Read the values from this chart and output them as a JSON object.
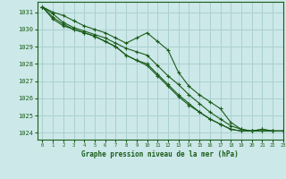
{
  "title": "Graphe pression niveau de la mer (hPa)",
  "background_color": "#cce8e8",
  "grid_color": "#aad0d0",
  "line_color": "#1a5c1a",
  "xlim": [
    -0.5,
    23
  ],
  "ylim": [
    1023.6,
    1031.6
  ],
  "xticks": [
    0,
    1,
    2,
    3,
    4,
    5,
    6,
    7,
    8,
    9,
    10,
    11,
    12,
    13,
    14,
    15,
    16,
    17,
    18,
    19,
    20,
    21,
    22,
    23
  ],
  "yticks": [
    1024,
    1025,
    1026,
    1027,
    1028,
    1029,
    1030,
    1031
  ],
  "series": [
    [
      1031.3,
      1031.0,
      1030.8,
      1030.5,
      1030.2,
      1030.0,
      1029.8,
      1029.5,
      1029.2,
      1029.5,
      1029.8,
      1029.3,
      1028.8,
      1027.5,
      1026.7,
      1026.2,
      1025.8,
      1025.4,
      1024.6,
      1024.2,
      1024.1,
      1024.2,
      1024.1,
      1024.1
    ],
    [
      1031.3,
      1030.9,
      1030.4,
      1030.1,
      1029.9,
      1029.7,
      1029.5,
      1029.2,
      1028.9,
      1028.7,
      1028.5,
      1027.9,
      1027.3,
      1026.8,
      1026.2,
      1025.7,
      1025.2,
      1024.8,
      1024.4,
      1024.2,
      1024.1,
      1024.2,
      1024.1,
      1024.1
    ],
    [
      1031.3,
      1030.6,
      1030.2,
      1030.0,
      1029.8,
      1029.6,
      1029.3,
      1029.0,
      1028.5,
      1028.2,
      1028.0,
      1027.4,
      1026.8,
      1026.2,
      1025.7,
      1025.2,
      1024.8,
      1024.5,
      1024.2,
      1024.1,
      1024.1,
      1024.1,
      1024.1,
      1024.1
    ],
    [
      1031.3,
      1030.7,
      1030.3,
      1030.0,
      1029.8,
      1029.6,
      1029.3,
      1029.0,
      1028.5,
      1028.2,
      1027.9,
      1027.3,
      1026.7,
      1026.1,
      1025.6,
      1025.2,
      1024.8,
      1024.5,
      1024.2,
      1024.1,
      1024.1,
      1024.1,
      1024.1,
      1024.1
    ]
  ]
}
